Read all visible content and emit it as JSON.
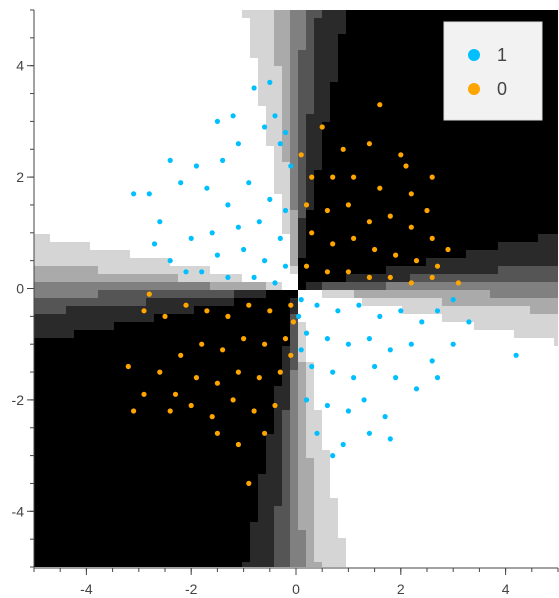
{
  "chart_data": {
    "type": "scatter",
    "title": "",
    "xlabel": "",
    "ylabel": "",
    "xlim": [
      -5,
      5
    ],
    "ylim": [
      -5,
      5
    ],
    "x_ticks": [
      -4,
      -2,
      0,
      2,
      4
    ],
    "y_ticks": [
      -4,
      -2,
      0,
      2,
      4
    ],
    "x_tick_labels": [
      "-4",
      "-2",
      "0",
      "2",
      "4"
    ],
    "y_tick_labels": [
      "-4",
      "-2",
      "0",
      "2",
      "4"
    ],
    "grid": false,
    "legend_position": "top-right",
    "background": "grayscale decision-boundary heatmap, black-to-white, XOR pattern",
    "series": [
      {
        "name": "1",
        "color": "#00bfff",
        "points": [
          [
            -0.8,
            3.6
          ],
          [
            -0.5,
            3.7
          ],
          [
            -1.2,
            3.1
          ],
          [
            -1.5,
            3.0
          ],
          [
            -2.4,
            2.3
          ],
          [
            -2.8,
            1.7
          ],
          [
            -3.1,
            1.7
          ],
          [
            -1.9,
            2.2
          ],
          [
            -1.1,
            2.6
          ],
          [
            -0.6,
            2.9
          ],
          [
            -0.3,
            2.6
          ],
          [
            -2.2,
            1.9
          ],
          [
            -2.6,
            1.2
          ],
          [
            -2.7,
            0.8
          ],
          [
            -2.4,
            0.5
          ],
          [
            -1.7,
            1.8
          ],
          [
            -1.3,
            1.5
          ],
          [
            -0.9,
            1.9
          ],
          [
            -0.5,
            1.6
          ],
          [
            -0.2,
            1.4
          ],
          [
            -1.6,
            1.0
          ],
          [
            -1.1,
            1.1
          ],
          [
            -0.7,
            1.2
          ],
          [
            -0.3,
            0.9
          ],
          [
            -2.0,
            0.9
          ],
          [
            -1.5,
            0.6
          ],
          [
            -1.0,
            0.7
          ],
          [
            -0.6,
            0.5
          ],
          [
            -0.2,
            0.4
          ],
          [
            -1.8,
            0.3
          ],
          [
            -1.3,
            0.2
          ],
          [
            -0.8,
            0.2
          ],
          [
            -0.4,
            0.1
          ],
          [
            -2.1,
            0.3
          ],
          [
            -0.1,
            2.2
          ],
          [
            -0.2,
            2.8
          ],
          [
            -1.4,
            2.3
          ],
          [
            -0.4,
            3.1
          ],
          [
            0.1,
            -0.2
          ],
          [
            0.4,
            -0.3
          ],
          [
            0.8,
            -0.4
          ],
          [
            1.2,
            -0.3
          ],
          [
            1.6,
            -0.5
          ],
          [
            2.0,
            -0.4
          ],
          [
            2.4,
            -0.6
          ],
          [
            2.7,
            -0.4
          ],
          [
            3.0,
            -0.2
          ],
          [
            0.2,
            -0.8
          ],
          [
            0.6,
            -0.9
          ],
          [
            1.0,
            -1.0
          ],
          [
            1.4,
            -0.9
          ],
          [
            1.8,
            -1.1
          ],
          [
            2.2,
            -1.0
          ],
          [
            2.6,
            -1.3
          ],
          [
            0.3,
            -1.4
          ],
          [
            0.7,
            -1.5
          ],
          [
            1.1,
            -1.6
          ],
          [
            1.5,
            -1.4
          ],
          [
            1.9,
            -1.6
          ],
          [
            2.3,
            -1.8
          ],
          [
            0.2,
            -2.0
          ],
          [
            0.6,
            -2.1
          ],
          [
            1.0,
            -2.2
          ],
          [
            1.3,
            -2.0
          ],
          [
            1.7,
            -2.3
          ],
          [
            0.4,
            -2.6
          ],
          [
            0.9,
            -2.8
          ],
          [
            1.4,
            -2.6
          ],
          [
            0.7,
            -3.0
          ],
          [
            1.8,
            -2.7
          ],
          [
            3.0,
            -1.0
          ],
          [
            3.3,
            -0.6
          ],
          [
            4.2,
            -1.2
          ],
          [
            2.7,
            -1.6
          ],
          [
            0.1,
            -1.1
          ],
          [
            0.05,
            -0.5
          ]
        ]
      },
      {
        "name": "0",
        "color": "#ffa500",
        "points": [
          [
            1.6,
            3.3
          ],
          [
            0.5,
            2.9
          ],
          [
            0.1,
            2.4
          ],
          [
            0.9,
            2.5
          ],
          [
            1.4,
            2.6
          ],
          [
            2.0,
            2.4
          ],
          [
            2.1,
            2.2
          ],
          [
            0.3,
            2.0
          ],
          [
            0.7,
            2.0
          ],
          [
            1.1,
            2.0
          ],
          [
            1.6,
            1.8
          ],
          [
            2.2,
            1.7
          ],
          [
            2.5,
            1.4
          ],
          [
            2.6,
            2.0
          ],
          [
            0.2,
            1.5
          ],
          [
            0.6,
            1.4
          ],
          [
            1.0,
            1.5
          ],
          [
            1.4,
            1.2
          ],
          [
            1.8,
            1.3
          ],
          [
            2.2,
            1.1
          ],
          [
            2.6,
            0.9
          ],
          [
            0.3,
            1.0
          ],
          [
            0.7,
            0.8
          ],
          [
            1.1,
            0.9
          ],
          [
            1.5,
            0.7
          ],
          [
            1.9,
            0.6
          ],
          [
            2.3,
            0.5
          ],
          [
            2.7,
            0.4
          ],
          [
            0.2,
            0.4
          ],
          [
            0.6,
            0.3
          ],
          [
            1.0,
            0.3
          ],
          [
            1.4,
            0.2
          ],
          [
            1.8,
            0.2
          ],
          [
            2.2,
            0.1
          ],
          [
            2.6,
            0.2
          ],
          [
            3.1,
            0.1
          ],
          [
            2.9,
            0.7
          ],
          [
            -0.1,
            -0.3
          ],
          [
            -0.5,
            -0.4
          ],
          [
            -0.9,
            -0.3
          ],
          [
            -1.3,
            -0.5
          ],
          [
            -1.7,
            -0.4
          ],
          [
            -2.1,
            -0.3
          ],
          [
            -2.5,
            -0.5
          ],
          [
            -2.8,
            -0.1
          ],
          [
            -0.2,
            -0.9
          ],
          [
            -0.6,
            -1.0
          ],
          [
            -1.0,
            -0.9
          ],
          [
            -1.4,
            -1.1
          ],
          [
            -1.8,
            -1.0
          ],
          [
            -2.2,
            -1.2
          ],
          [
            -2.6,
            -1.5
          ],
          [
            -0.3,
            -1.5
          ],
          [
            -0.7,
            -1.6
          ],
          [
            -1.1,
            -1.5
          ],
          [
            -1.5,
            -1.7
          ],
          [
            -1.9,
            -1.6
          ],
          [
            -2.3,
            -1.9
          ],
          [
            -0.4,
            -2.1
          ],
          [
            -0.8,
            -2.2
          ],
          [
            -1.2,
            -2.0
          ],
          [
            -1.6,
            -2.3
          ],
          [
            -2.0,
            -2.1
          ],
          [
            -0.6,
            -2.6
          ],
          [
            -1.1,
            -2.8
          ],
          [
            -1.5,
            -2.6
          ],
          [
            -0.9,
            -3.5
          ],
          [
            -3.1,
            -2.2
          ],
          [
            -3.2,
            -1.4
          ],
          [
            -2.9,
            -1.9
          ],
          [
            -2.4,
            -2.2
          ],
          [
            -2.9,
            -0.4
          ],
          [
            -0.05,
            -0.6
          ],
          [
            -0.1,
            -1.2
          ]
        ]
      }
    ]
  },
  "legend": {
    "items": [
      {
        "label": "1",
        "color": "#00bfff"
      },
      {
        "label": "0",
        "color": "#ffa500"
      }
    ]
  }
}
